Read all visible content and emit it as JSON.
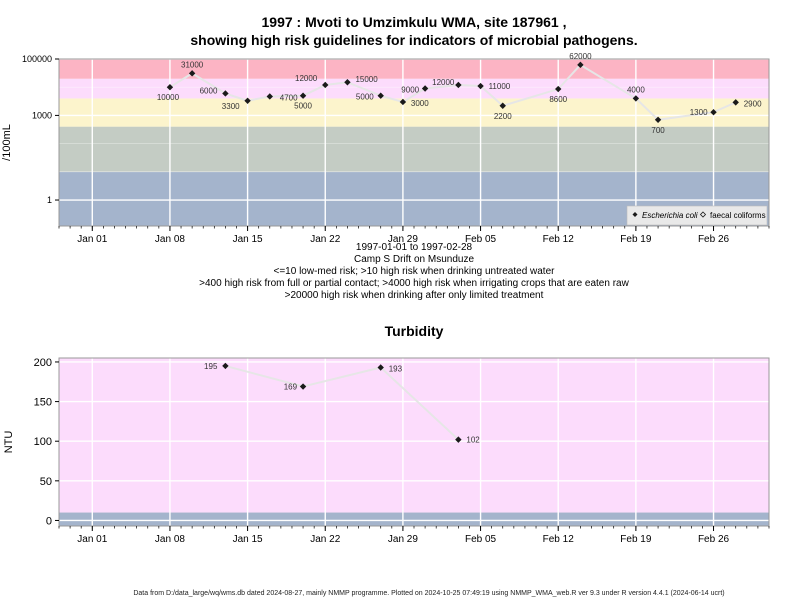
{
  "chart_data": [
    {
      "type": "scatter",
      "title_line1": "1997 : Mvoti to Umzimkulu WMA, site 187961 ,",
      "title_line2": "showing high risk guidelines for indicators of microbial pathogens.",
      "ylabel": "/100mL",
      "y_scale": "log",
      "ylim": [
        0.12,
        100000
      ],
      "yticks": [
        1,
        1000,
        100000
      ],
      "ytick_labels": [
        "1",
        "1000",
        "100000"
      ],
      "xlim": [
        "1996-12-29",
        "1997-03-03"
      ],
      "xticks": [
        "1997-01-01",
        "1997-01-08",
        "1997-01-15",
        "1997-01-22",
        "1997-01-29",
        "1997-02-05",
        "1997-02-12",
        "1997-02-19",
        "1997-02-26"
      ],
      "xtick_labels": [
        "Jan 01",
        "Jan 08",
        "Jan 15",
        "Jan 22",
        "Jan 29",
        "Feb 05",
        "Feb 12",
        "Feb 19",
        "Feb 26"
      ],
      "bands": [
        {
          "from": 0.12,
          "to": 10,
          "color": "#a4b4cc"
        },
        {
          "from": 10,
          "to": 400,
          "color": "#c4ccc4"
        },
        {
          "from": 400,
          "to": 4000,
          "color": "#fcf4cc"
        },
        {
          "from": 4000,
          "to": 20000,
          "color": "#fcdcfc"
        },
        {
          "from": 20000,
          "to": 100000,
          "color": "#fcb4c4"
        }
      ],
      "legend": {
        "placement": "bottom-right",
        "entries": [
          "Escherichia coli",
          "faecal coliforms"
        ]
      },
      "series": [
        {
          "name": "Escherichia coli",
          "points": [
            {
              "x": "1997-01-08",
              "y": 10000,
              "label": "10000"
            },
            {
              "x": "1997-01-10",
              "y": 31000,
              "label": "31000"
            },
            {
              "x": "1997-01-13",
              "y": 6000,
              "label": "6000"
            },
            {
              "x": "1997-01-15",
              "y": 3300,
              "label": "3300"
            },
            {
              "x": "1997-01-17",
              "y": 4700,
              "label": "4700"
            },
            {
              "x": "1997-01-20",
              "y": 5000,
              "label": "5000"
            },
            {
              "x": "1997-01-22",
              "y": 12000,
              "label": "12000"
            },
            {
              "x": "1997-01-24",
              "y": 15000,
              "label": "15000"
            },
            {
              "x": "1997-01-27",
              "y": 5000,
              "label": "5000"
            },
            {
              "x": "1997-01-29",
              "y": 3000,
              "label": "3000"
            },
            {
              "x": "1997-01-31",
              "y": 9000,
              "label": "9000"
            },
            {
              "x": "1997-02-03",
              "y": 12000,
              "label": "12000"
            },
            {
              "x": "1997-02-05",
              "y": 11000,
              "label": "11000"
            },
            {
              "x": "1997-02-07",
              "y": 2200,
              "label": "2200"
            },
            {
              "x": "1997-02-12",
              "y": 8600,
              "label": "8600"
            },
            {
              "x": "1997-02-14",
              "y": 62000,
              "label": "62000"
            },
            {
              "x": "1997-02-19",
              "y": 4000,
              "label": "4000"
            },
            {
              "x": "1997-02-21",
              "y": 700,
              "label": "700"
            },
            {
              "x": "1997-02-26",
              "y": 1300,
              "label": "1300"
            },
            {
              "x": "1997-02-28",
              "y": 2900,
              "label": "2900"
            }
          ]
        }
      ],
      "subtitle_lines": [
        "1997-01-01 to 1997-02-28",
        "Camp S Drift on Msunduze",
        "<=10 low-med risk; >10 high risk when drinking untreated water",
        ">400 high risk from full or partial contact; >4000 high risk when irrigating crops that are eaten raw",
        ">20000 high risk when drinking after only limited treatment"
      ]
    },
    {
      "type": "scatter",
      "title": "Turbidity",
      "ylabel": "NTU",
      "ylim": [
        -7,
        205
      ],
      "yticks": [
        0,
        50,
        100,
        150,
        200
      ],
      "ytick_labels": [
        "0",
        "50",
        "100",
        "150",
        "200"
      ],
      "xlim": [
        "1996-12-29",
        "1997-03-03"
      ],
      "xticks": [
        "1997-01-01",
        "1997-01-08",
        "1997-01-15",
        "1997-01-22",
        "1997-01-29",
        "1997-02-05",
        "1997-02-12",
        "1997-02-19",
        "1997-02-26"
      ],
      "xtick_labels": [
        "Jan 01",
        "Jan 08",
        "Jan 15",
        "Jan 22",
        "Jan 29",
        "Feb 05",
        "Feb 12",
        "Feb 19",
        "Feb 26"
      ],
      "bands": [
        {
          "from": -7,
          "to": 10,
          "color": "#a4b4cc"
        },
        {
          "from": 10,
          "to": 205,
          "color": "#fcdcfc"
        }
      ],
      "series": [
        {
          "name": "",
          "points": [
            {
              "x": "1997-01-13",
              "y": 195,
              "label": "195"
            },
            {
              "x": "1997-01-20",
              "y": 169,
              "label": "169"
            },
            {
              "x": "1997-01-27",
              "y": 193,
              "label": "193"
            },
            {
              "x": "1997-02-03",
              "y": 102,
              "label": "102"
            }
          ]
        }
      ]
    }
  ],
  "footer": "Data from D:/data_large/wq/wms.db dated 2024-08-27, mainly NMMP programme. Plotted on 2024-10-25 07:49:19 using NMMP_WMA_web.R ver 9.3 under R version 4.4.1 (2024-06-14 ucrt)"
}
